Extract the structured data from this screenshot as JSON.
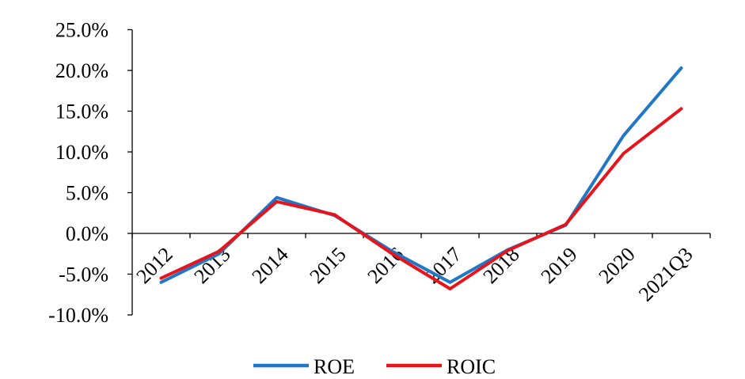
{
  "chart_data": {
    "type": "line",
    "categories": [
      "2012",
      "2013",
      "2014",
      "2015",
      "2016",
      "2017",
      "2018",
      "2019",
      "2020",
      "2021Q3"
    ],
    "series": [
      {
        "name": "ROE",
        "color": "#1f77c6",
        "values": [
          -6.0,
          -2.5,
          4.4,
          2.2,
          -2.2,
          -6.0,
          -2.0,
          1.0,
          12.0,
          20.3
        ]
      },
      {
        "name": "ROIC",
        "color": "#e8141c",
        "values": [
          -5.5,
          -2.2,
          3.9,
          2.3,
          -2.5,
          -6.8,
          -2.1,
          1.1,
          9.8,
          15.3
        ]
      }
    ],
    "yticks": [
      "25.0%",
      "20.0%",
      "15.0%",
      "10.0%",
      "5.0%",
      "0.0%",
      "-5.0%",
      "-10.0%"
    ],
    "ylim": [
      -10,
      25
    ],
    "legend_position": "bottom-center",
    "grid": false
  }
}
